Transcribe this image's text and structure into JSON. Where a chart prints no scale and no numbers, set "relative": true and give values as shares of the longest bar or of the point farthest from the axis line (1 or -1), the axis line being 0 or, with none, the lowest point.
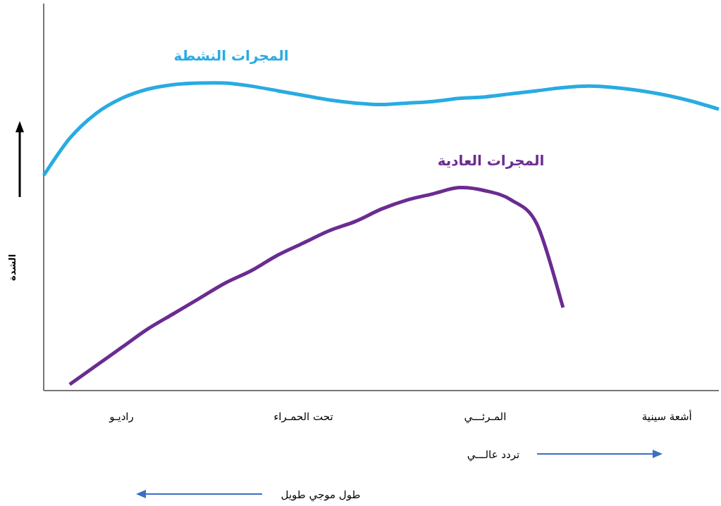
{
  "chart_data": {
    "type": "line",
    "relative": true,
    "ylabel": "الشدة",
    "categories": [
      null,
      null,
      null,
      "راديـو",
      null,
      null,
      null,
      null,
      null,
      null,
      "تحت الحمـراء",
      null,
      null,
      null,
      null,
      null,
      null,
      "المـرئـــي",
      null,
      null,
      null,
      null,
      null,
      null,
      "أشعة سينية",
      null,
      null
    ],
    "series": [
      {
        "name": "المجرات النشطة",
        "color": "#29abe2",
        "values": [
          0.7,
          0.82,
          0.9,
          0.95,
          0.98,
          0.995,
          1.0,
          1.0,
          0.99,
          0.975,
          0.96,
          0.945,
          0.935,
          0.93,
          0.935,
          0.94,
          0.95,
          0.955,
          0.965,
          0.975,
          0.985,
          0.99,
          0.985,
          0.975,
          0.96,
          0.94,
          0.915
        ]
      },
      {
        "name": "المجرات العادية",
        "color": "#6a2c91",
        "values": [
          null,
          0.02,
          0.08,
          0.14,
          0.2,
          0.25,
          0.3,
          0.35,
          0.39,
          0.44,
          0.48,
          0.52,
          0.55,
          0.59,
          0.62,
          0.64,
          0.66,
          0.65,
          0.62,
          0.54,
          0.27,
          null,
          null,
          null,
          null,
          null,
          null
        ]
      }
    ],
    "annotations": [
      "تردد عالـــي",
      "طول موجي طويل"
    ]
  }
}
